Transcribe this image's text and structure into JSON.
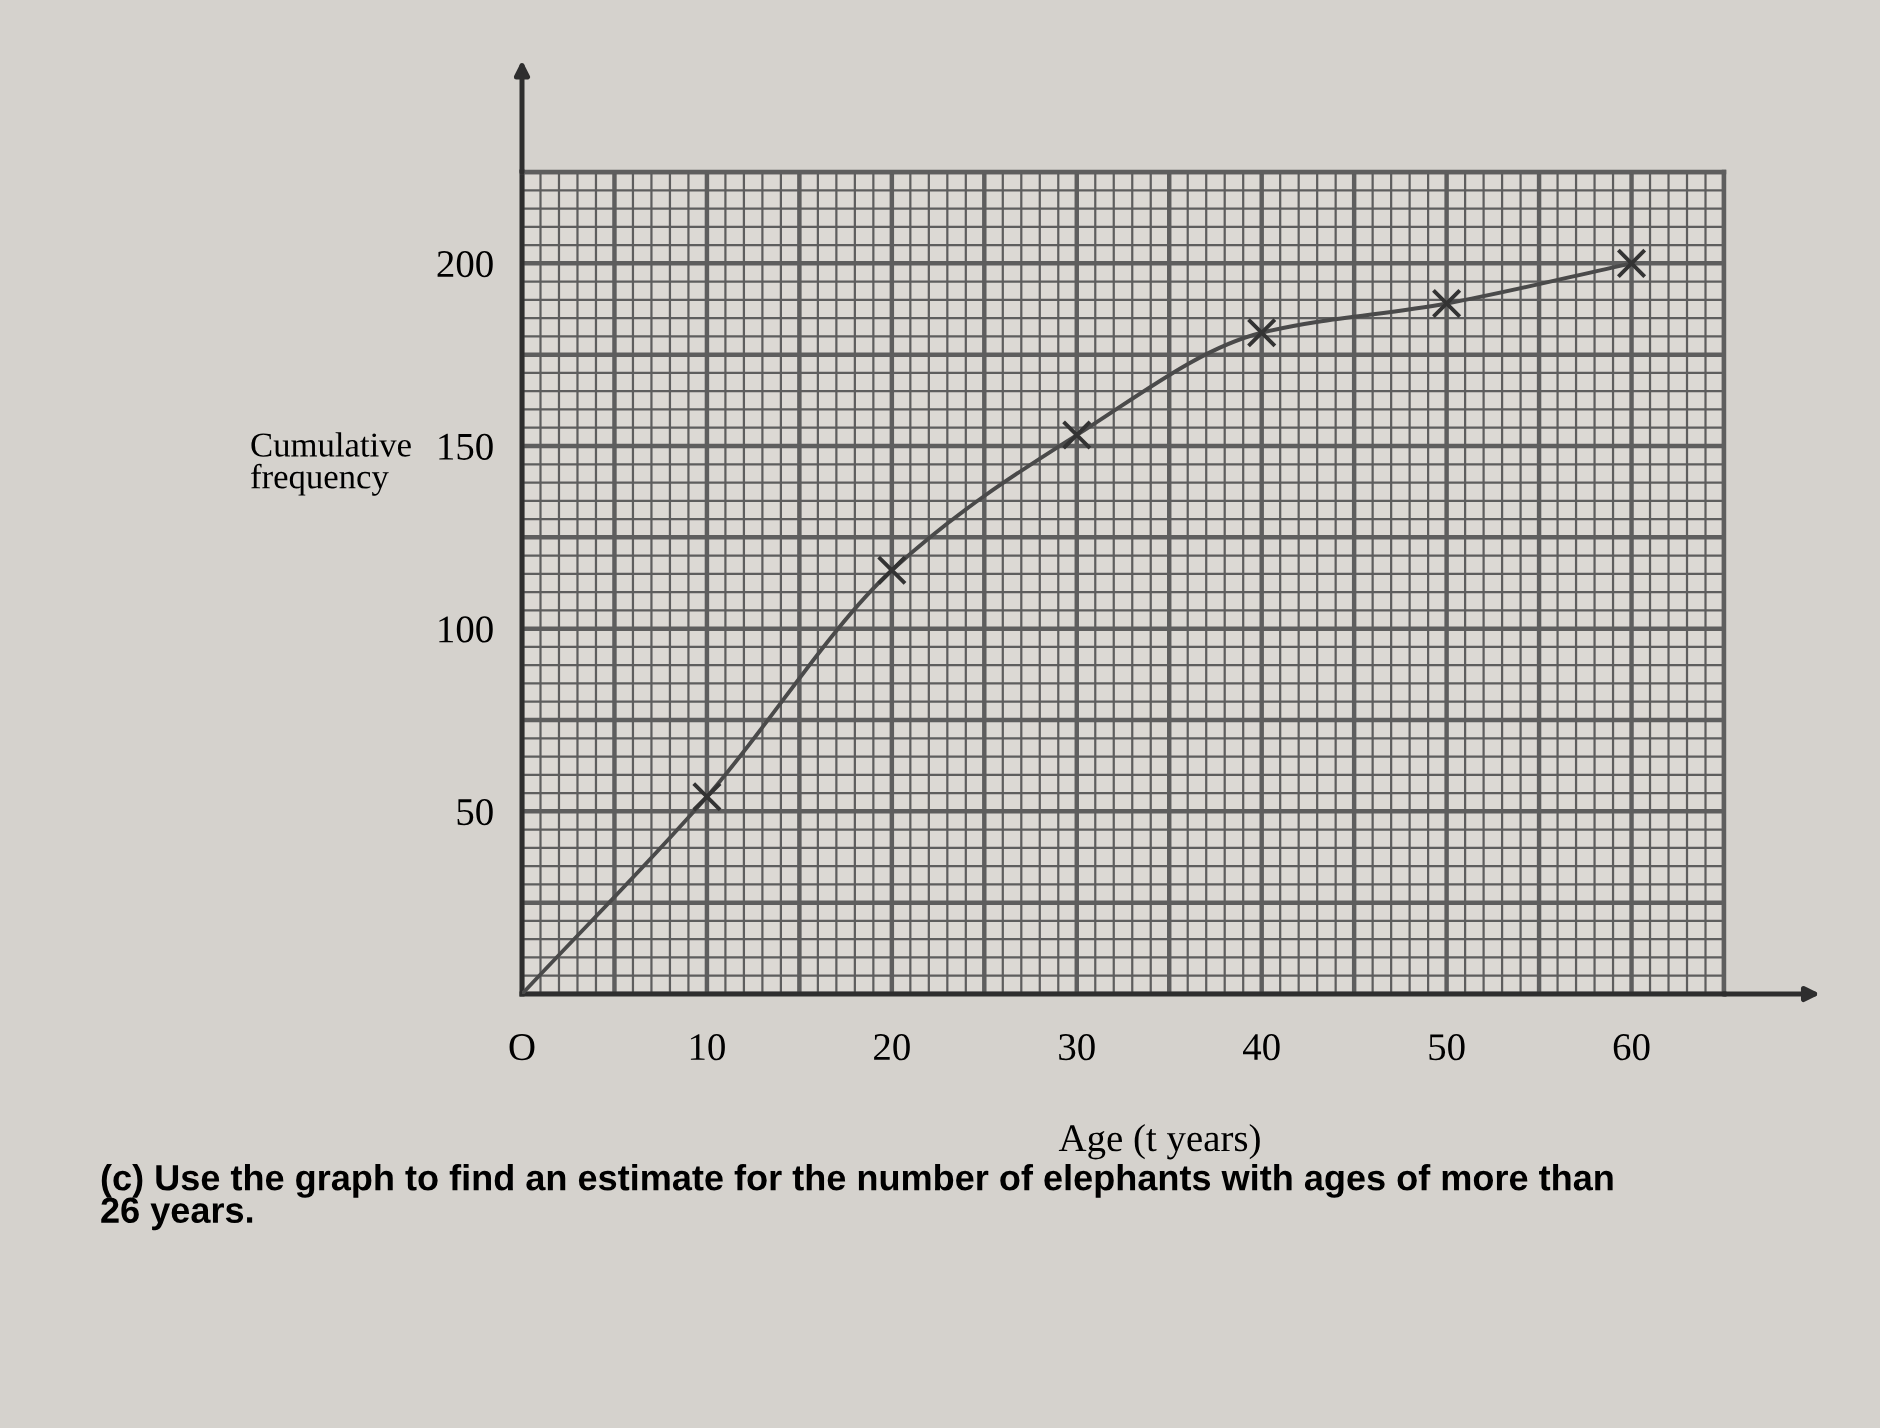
{
  "chart_data": {
    "type": "line",
    "xlabel": "Age (t years)",
    "ylabel": "Cumulative frequency",
    "annotations": [
      "(c) Use the graph to find an estimate for the number of elephants with ages of more than 26 years."
    ],
    "series": [
      {
        "type": "line",
        "color": "#4a4a4a",
        "x": [
          0,
          10,
          20,
          30,
          40,
          50,
          60
        ],
        "values": [
          0,
          54,
          116,
          153,
          181,
          189,
          200
        ],
        "marker": "none"
      },
      {
        "type": "scatter",
        "color": "#333333",
        "x": [
          10,
          20,
          30,
          40,
          50,
          60
        ],
        "values": [
          54,
          116,
          153,
          181,
          189,
          200
        ],
        "marker": "cross"
      }
    ],
    "xlim": [
      0,
      65
    ],
    "ylim": [
      0,
      225
    ],
    "xticks": [
      {
        "value": 0,
        "label": "O"
      },
      {
        "value": 1,
        "label": null
      },
      {
        "value": 2,
        "label": null
      },
      {
        "value": 3,
        "label": null
      },
      {
        "value": 4,
        "label": null
      },
      {
        "value": 5,
        "label": null
      },
      {
        "value": 6,
        "label": null
      },
      {
        "value": 7,
        "label": null
      },
      {
        "value": 8,
        "label": null
      },
      {
        "value": 9,
        "label": null
      },
      10,
      {
        "value": 11,
        "label": null
      },
      {
        "value": 12,
        "label": null
      },
      {
        "value": 13,
        "label": null
      },
      {
        "value": 14,
        "label": null
      },
      {
        "value": 15,
        "label": null
      },
      {
        "value": 16,
        "label": null
      },
      {
        "value": 17,
        "label": null
      },
      {
        "value": 18,
        "label": null
      },
      {
        "value": 19,
        "label": null
      },
      20,
      {
        "value": 21,
        "label": null
      },
      {
        "value": 22,
        "label": null
      },
      {
        "value": 23,
        "label": null
      },
      {
        "value": 24,
        "label": null
      },
      {
        "value": 25,
        "label": null
      },
      {
        "value": 26,
        "label": null
      },
      {
        "value": 27,
        "label": null
      },
      {
        "value": 28,
        "label": null
      },
      {
        "value": 29,
        "label": null
      },
      30,
      {
        "value": 31,
        "label": null
      },
      {
        "value": 32,
        "label": null
      },
      {
        "value": 33,
        "label": null
      },
      {
        "value": 34,
        "label": null
      },
      {
        "value": 35,
        "label": null
      },
      {
        "value": 36,
        "label": null
      },
      {
        "value": 37,
        "label": null
      },
      {
        "value": 38,
        "label": null
      },
      {
        "value": 39,
        "label": null
      },
      40,
      {
        "value": 41,
        "label": null
      },
      {
        "value": 42,
        "label": null
      },
      {
        "value": 43,
        "label": null
      },
      {
        "value": 44,
        "label": null
      },
      {
        "value": 45,
        "label": null
      },
      {
        "value": 46,
        "label": null
      },
      {
        "value": 47,
        "label": null
      },
      {
        "value": 48,
        "label": null
      },
      {
        "value": 49,
        "label": null
      },
      50,
      {
        "value": 51,
        "label": null
      },
      {
        "value": 52,
        "label": null
      },
      {
        "value": 53,
        "label": null
      },
      {
        "value": 54,
        "label": null
      },
      {
        "value": 55,
        "label": null
      },
      {
        "value": 56,
        "label": null
      },
      {
        "value": 57,
        "label": null
      },
      {
        "value": 58,
        "label": null
      },
      {
        "value": 59,
        "label": null
      },
      60,
      {
        "value": 61,
        "label": null
      },
      {
        "value": 62,
        "label": null
      },
      {
        "value": 63,
        "label": null
      },
      {
        "value": 64,
        "label": null
      },
      {
        "value": 65,
        "label": null
      }
    ],
    "yticks": [
      {
        "value": 0,
        "label": null
      },
      {
        "value": 5,
        "label": null
      },
      {
        "value": 10,
        "label": null
      },
      {
        "value": 15,
        "label": null
      },
      {
        "value": 20,
        "label": null
      },
      {
        "value": 25,
        "label": null
      },
      {
        "value": 30,
        "label": null
      },
      {
        "value": 35,
        "label": null
      },
      {
        "value": 40,
        "label": null
      },
      {
        "value": 45,
        "label": null
      },
      50,
      {
        "value": 55,
        "label": null
      },
      {
        "value": 60,
        "label": null
      },
      {
        "value": 65,
        "label": null
      },
      {
        "value": 70,
        "label": null
      },
      {
        "value": 75,
        "label": null
      },
      {
        "value": 80,
        "label": null
      },
      {
        "value": 85,
        "label": null
      },
      {
        "value": 90,
        "label": null
      },
      {
        "value": 95,
        "label": null
      },
      100,
      {
        "value": 105,
        "label": null
      },
      {
        "value": 110,
        "label": null
      },
      {
        "value": 115,
        "label": null
      },
      {
        "value": 120,
        "label": null
      },
      {
        "value": 125,
        "label": null
      },
      {
        "value": 130,
        "label": null
      },
      {
        "value": 135,
        "label": null
      },
      {
        "value": 140,
        "label": null
      },
      {
        "value": 145,
        "label": null
      },
      150,
      {
        "value": 155,
        "label": null
      },
      {
        "value": 160,
        "label": null
      },
      {
        "value": 165,
        "label": null
      },
      {
        "value": 170,
        "label": null
      },
      {
        "value": 175,
        "label": null
      },
      {
        "value": 180,
        "label": null
      },
      {
        "value": 185,
        "label": null
      },
      {
        "value": 190,
        "label": null
      },
      {
        "value": 195,
        "label": null
      },
      200,
      {
        "value": 205,
        "label": null
      },
      {
        "value": 210,
        "label": null
      },
      {
        "value": 215,
        "label": null
      },
      {
        "value": 220,
        "label": null
      },
      {
        "value": 225,
        "label": null
      }
    ],
    "grid": true
  }
}
